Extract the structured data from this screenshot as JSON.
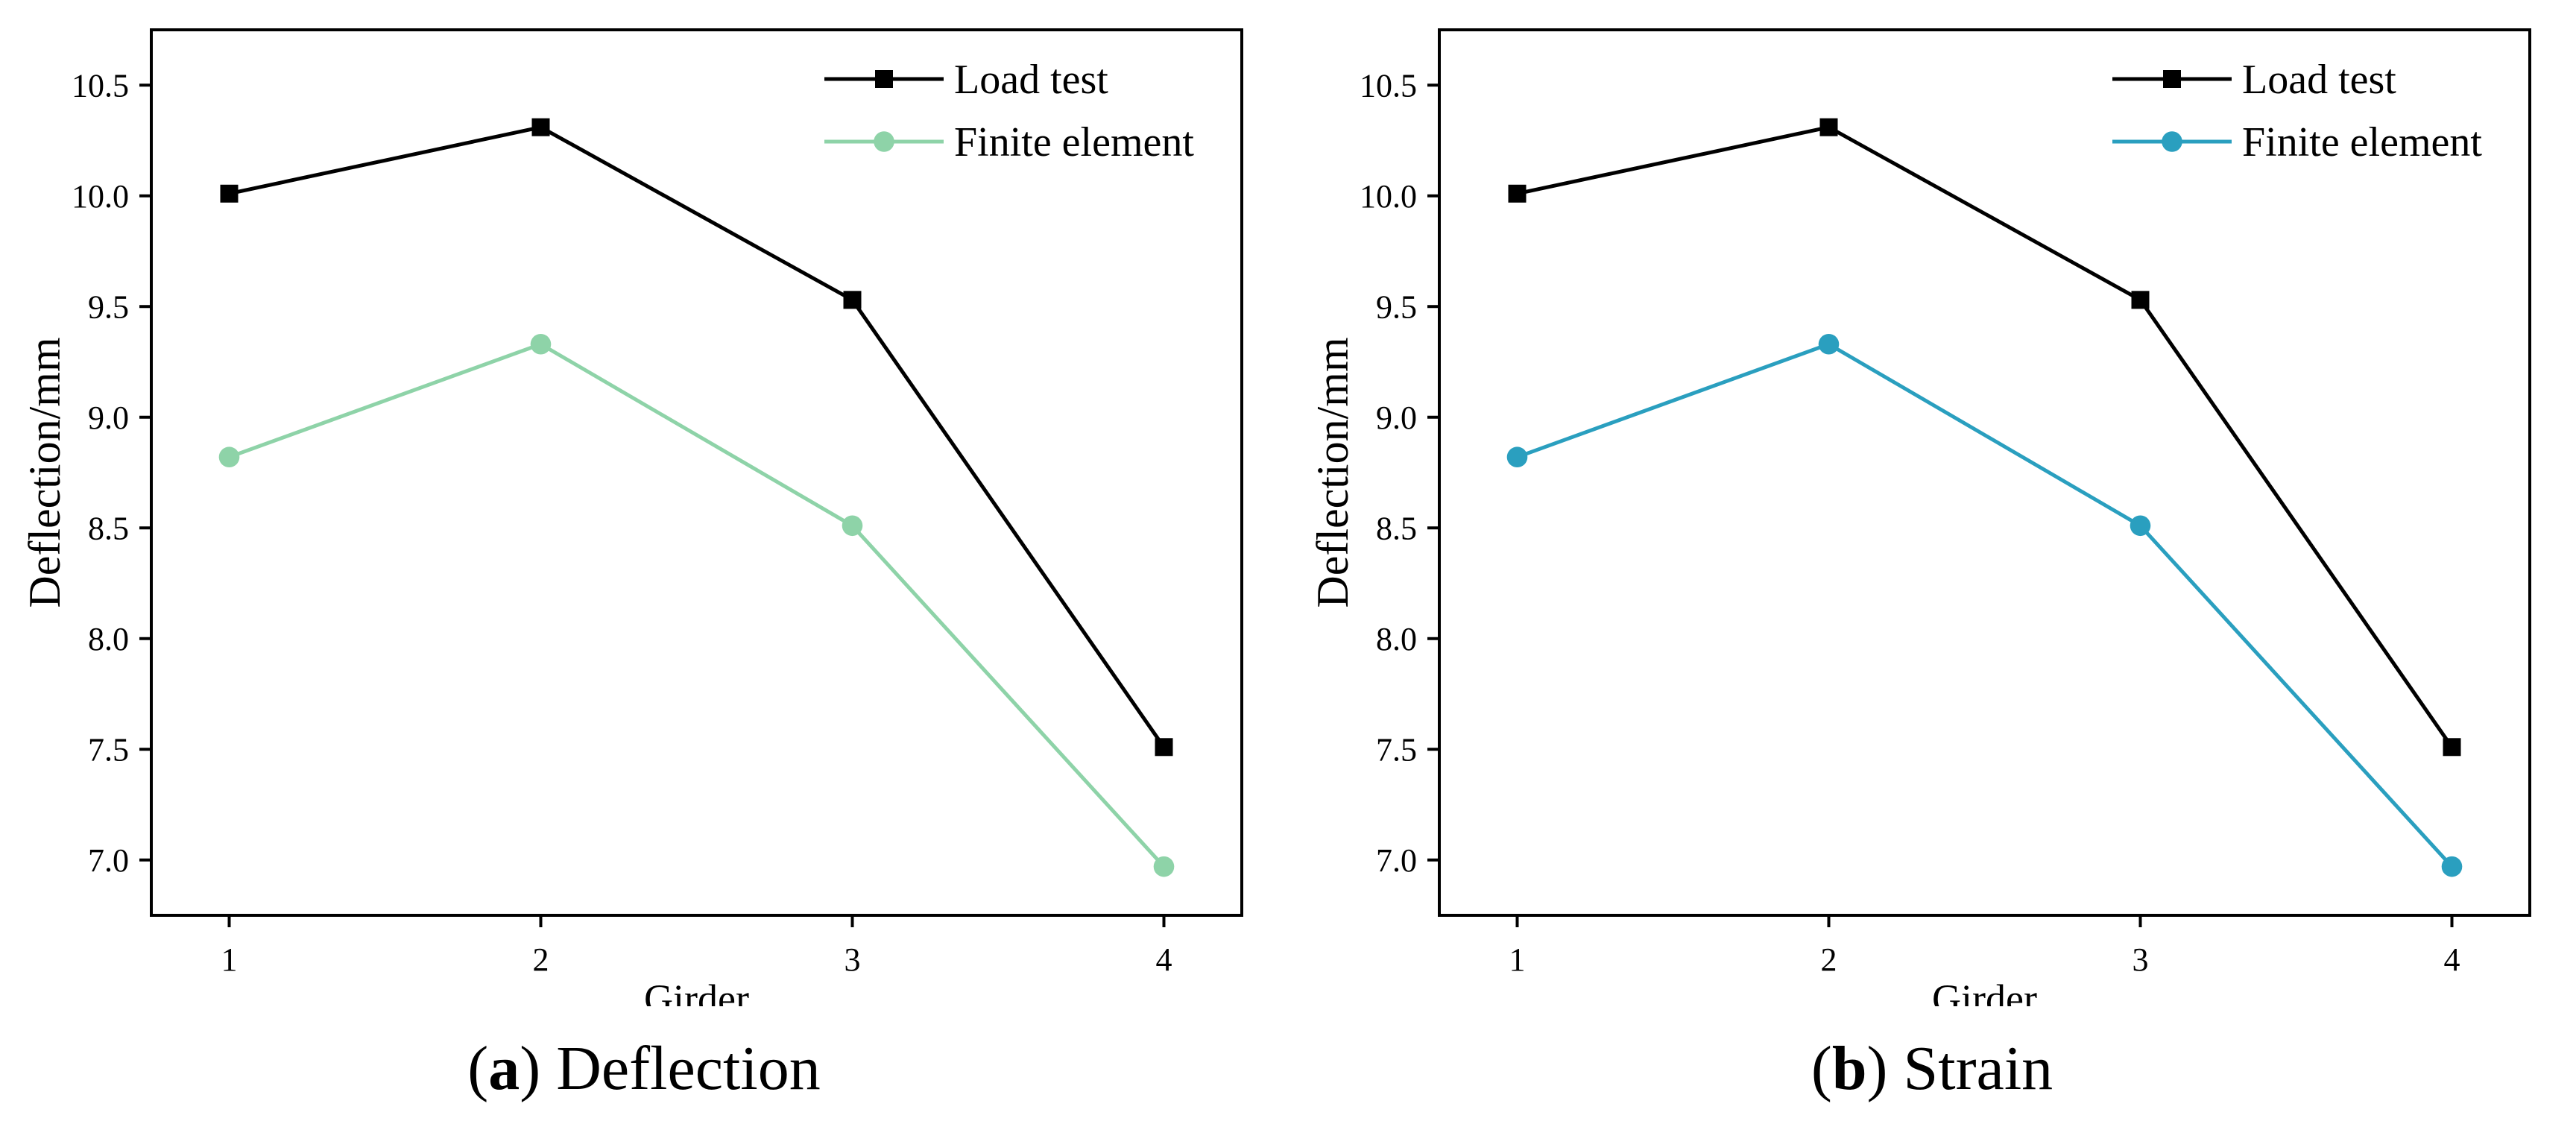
{
  "chart_data": [
    {
      "type": "line",
      "panel_label": "a",
      "caption": "Deflection",
      "xlabel": "Girder",
      "ylabel": "Deflection/mm",
      "x": [
        1,
        2,
        3,
        4
      ],
      "x_ticks": [
        "1",
        "2",
        "3",
        "4"
      ],
      "y_ticks": [
        "7.0",
        "7.5",
        "8.0",
        "8.5",
        "9.0",
        "9.5",
        "10.0",
        "10.5"
      ],
      "xlim": [
        0.75,
        4.25
      ],
      "ylim": [
        6.75,
        10.75
      ],
      "grid": false,
      "legend_position": "top-right",
      "series": [
        {
          "name": "Load test",
          "marker": "square",
          "color": "#000000",
          "values": [
            10.01,
            10.31,
            9.53,
            7.51
          ]
        },
        {
          "name": "Finite element",
          "marker": "circle",
          "color": "#8ed3a8",
          "values": [
            8.82,
            9.33,
            8.51,
            6.97
          ]
        }
      ]
    },
    {
      "type": "line",
      "panel_label": "b",
      "caption": "Strain",
      "xlabel": "Girder",
      "ylabel": "Deflection/mm",
      "x": [
        1,
        2,
        3,
        4
      ],
      "x_ticks": [
        "1",
        "2",
        "3",
        "4"
      ],
      "y_ticks": [
        "7.0",
        "7.5",
        "8.0",
        "8.5",
        "9.0",
        "9.5",
        "10.0",
        "10.5"
      ],
      "xlim": [
        0.75,
        4.25
      ],
      "ylim": [
        6.75,
        10.75
      ],
      "grid": false,
      "legend_position": "top-right",
      "series": [
        {
          "name": "Load test",
          "marker": "square",
          "color": "#000000",
          "values": [
            10.01,
            10.31,
            9.53,
            7.51
          ]
        },
        {
          "name": "Finite element",
          "marker": "circle",
          "color": "#2a9fbf",
          "values": [
            8.82,
            9.33,
            8.51,
            6.97
          ]
        }
      ]
    }
  ]
}
